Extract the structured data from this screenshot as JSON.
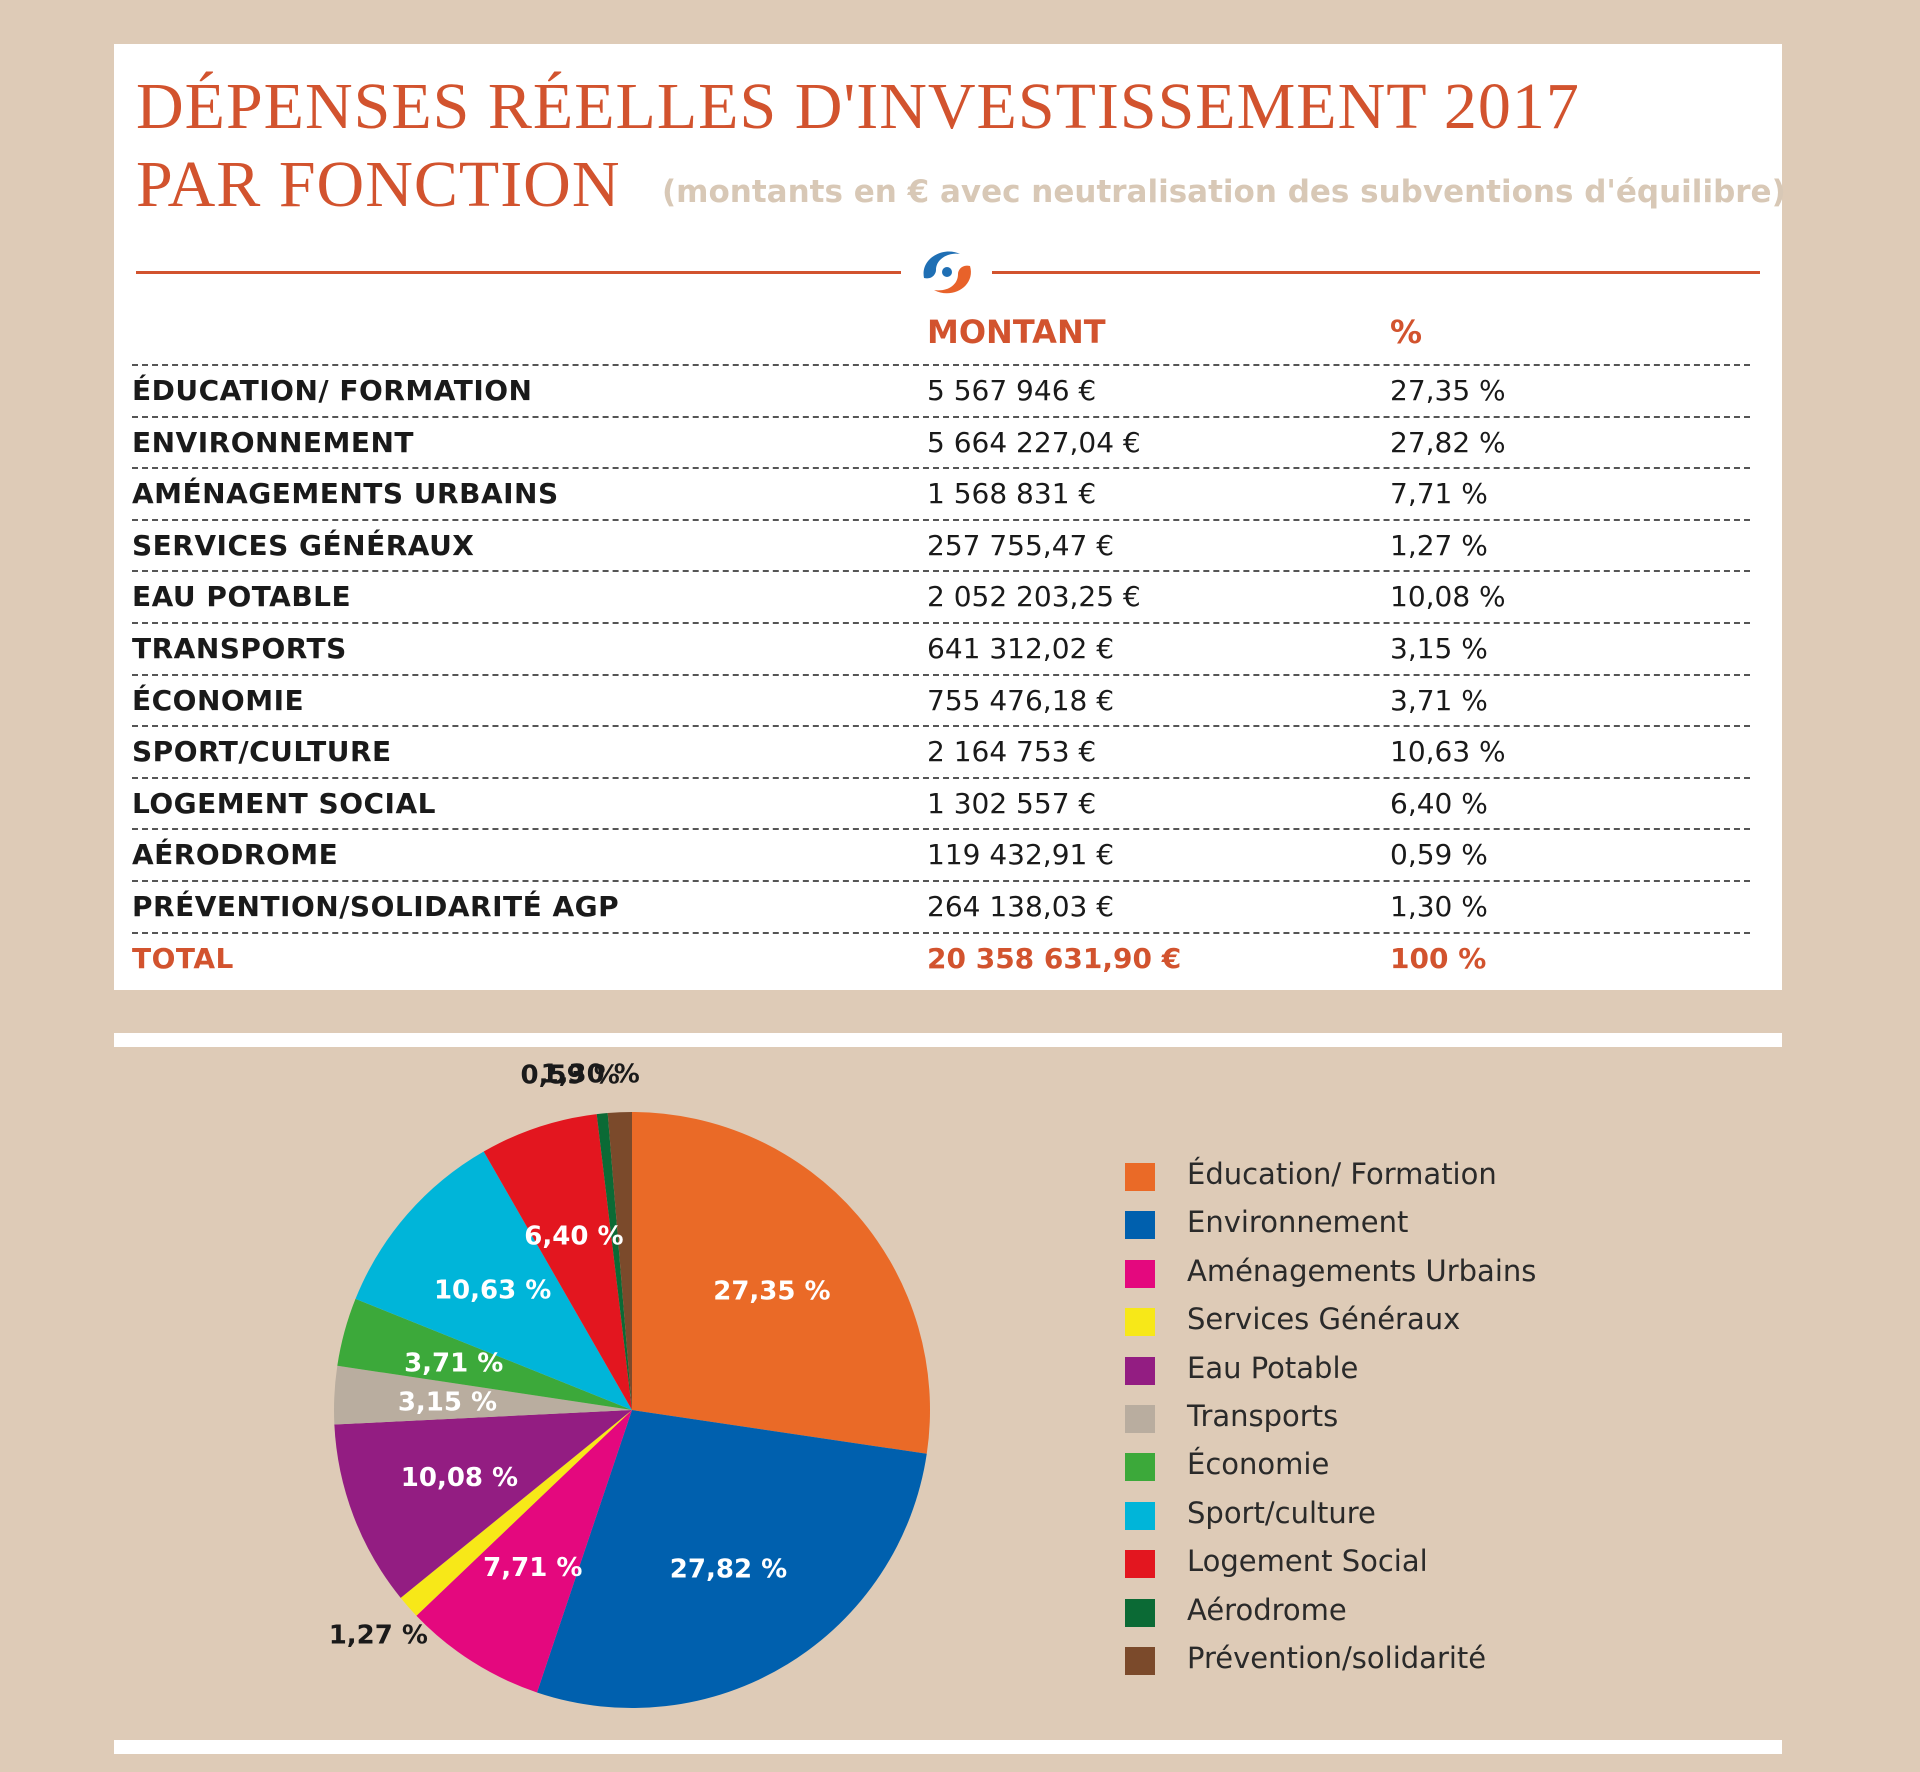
{
  "header": {
    "title_line1": "DÉPENSES RÉELLES D'INVESTISSEMENT 2017",
    "title_line2": "PAR FONCTION",
    "subtitle": "(montants en € avec neutralisation des subventions d'équilibre)"
  },
  "table": {
    "col_montant": "MONTANT",
    "col_pct": "%",
    "rows": [
      {
        "label": "ÉDUCATION/ FORMATION",
        "amount": "5 567 946  €",
        "pct": "27,35 %"
      },
      {
        "label": "ENVIRONNEMENT",
        "amount": "5 664 227,04  €",
        "pct": "27,82 %"
      },
      {
        "label": "AMÉNAGEMENTS URBAINS",
        "amount": "1 568 831 €",
        "pct": "7,71 %"
      },
      {
        "label": "SERVICES GÉNÉRAUX",
        "amount": "257 755,47 €",
        "pct": "1,27 %"
      },
      {
        "label": "EAU POTABLE",
        "amount": "2 052 203,25 €",
        "pct": "10,08 %"
      },
      {
        "label": "TRANSPORTS",
        "amount": "641 312,02 €",
        "pct": "3,15 %"
      },
      {
        "label": "ÉCONOMIE",
        "amount": "755 476,18 €",
        "pct": "3,71 %"
      },
      {
        "label": "SPORT/CULTURE",
        "amount": "2 164 753 €",
        "pct": "10,63 %"
      },
      {
        "label": "LOGEMENT SOCIAL",
        "amount": "1 302 557 €",
        "pct": "6,40 %"
      },
      {
        "label": "AÉRODROME",
        "amount": "119 432,91 €",
        "pct": "0,59 %"
      },
      {
        "label": "PRÉVENTION/SOLIDARITÉ AGP",
        "amount": "264 138,03 €",
        "pct": "1,30 %"
      }
    ],
    "total": {
      "label": "TOTAL",
      "amount": "20 358 631,90 €",
      "pct": "100 %"
    }
  },
  "chart_data": {
    "type": "pie",
    "categories": [
      "Éducation/ Formation",
      "Environnement",
      "Aménagements Urbains",
      "Services Généraux",
      "Eau Potable",
      "Transports",
      "Économie",
      "Sport/culture",
      "Logement Social",
      "Aérodrome",
      "Prévention/solidarité"
    ],
    "values": [
      27.35,
      27.82,
      7.71,
      1.27,
      10.08,
      3.15,
      3.71,
      10.63,
      6.4,
      0.59,
      1.3
    ],
    "labels": [
      "27,35 %",
      "27,82 %",
      "7,71 %",
      "1,27 %",
      "10,08 %",
      "3,15 %",
      "3,71 %",
      "10,63 %",
      "6,40 %",
      "0,59 %",
      "1,30 %"
    ],
    "colors": [
      "#ea6a27",
      "#0060ae",
      "#e4087e",
      "#f7e818",
      "#931d82",
      "#b9ad9f",
      "#3ca93a",
      "#00b5d9",
      "#e3161f",
      "#0b6a35",
      "#7b4a2b"
    ],
    "label_colors": [
      "#ffffff",
      "#ffffff",
      "#ffffff",
      "#1a1a1a",
      "#ffffff",
      "#ffffff",
      "#ffffff",
      "#ffffff",
      "#ffffff",
      "#1a1a1a",
      "#1a1a1a"
    ],
    "legend_position": "right"
  }
}
